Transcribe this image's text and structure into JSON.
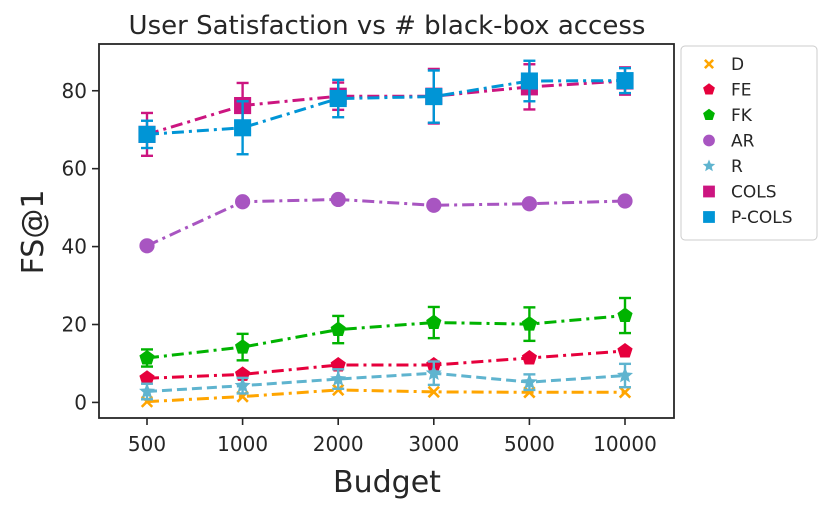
{
  "chart_data": {
    "type": "line",
    "title": "User Satisfaction vs # black-box access",
    "xlabel": "Budget",
    "ylabel": "FS@1",
    "categories": [
      "500",
      "1000",
      "2000",
      "3000",
      "5000",
      "10000"
    ],
    "ylim": [
      -4,
      92
    ],
    "yticks": [
      0,
      20,
      40,
      60,
      80
    ],
    "grid": false,
    "legend_position": "outside-top-right",
    "series": [
      {
        "name": "D",
        "color": "#ffa500",
        "marker": "x",
        "linestyle": "dashdot",
        "values": [
          0.2,
          1.5,
          3.2,
          2.7,
          2.6,
          2.6
        ],
        "errors": [
          0,
          0,
          0,
          0,
          0,
          0
        ]
      },
      {
        "name": "FE",
        "color": "#e6003c",
        "marker": "pentagon",
        "linestyle": "dashdot",
        "values": [
          6.2,
          7.2,
          9.6,
          9.6,
          11.4,
          13.2
        ],
        "errors": [
          0,
          0,
          0,
          0,
          0,
          0
        ]
      },
      {
        "name": "FK",
        "color": "#00b300",
        "marker": "pentagon",
        "linestyle": "dashdot",
        "values": [
          11.4,
          14.2,
          18.7,
          20.5,
          20.1,
          22.3
        ],
        "errors": [
          2.2,
          3.4,
          3.5,
          4.0,
          4.3,
          4.5
        ]
      },
      {
        "name": "AR",
        "color": "#a855c1",
        "marker": "circle",
        "linestyle": "dashdot",
        "values": [
          40.2,
          51.5,
          52.1,
          50.6,
          51.0,
          51.7
        ],
        "errors": [
          0,
          0,
          0,
          0,
          0,
          0
        ]
      },
      {
        "name": "R",
        "color": "#5fb4cf",
        "marker": "star",
        "linestyle": "dashed",
        "values": [
          2.8,
          4.3,
          6.0,
          7.5,
          5.2,
          6.9
        ],
        "errors": [
          2.0,
          2.0,
          2.5,
          3.0,
          2.0,
          3.0
        ]
      },
      {
        "name": "COLS",
        "color": "#cc1580",
        "marker": "square",
        "linestyle": "dashdot",
        "values": [
          68.8,
          76.2,
          78.6,
          78.6,
          81.0,
          82.5
        ],
        "errors": [
          5.5,
          5.8,
          3.5,
          7.0,
          5.8,
          3.5
        ]
      },
      {
        "name": "P-COLS",
        "color": "#0095d6",
        "marker": "square",
        "linestyle": "dashdot",
        "values": [
          68.8,
          70.5,
          78.0,
          78.5,
          82.5,
          82.6
        ],
        "errors": [
          3.5,
          6.8,
          4.8,
          6.7,
          5.2,
          3.2
        ]
      }
    ]
  }
}
